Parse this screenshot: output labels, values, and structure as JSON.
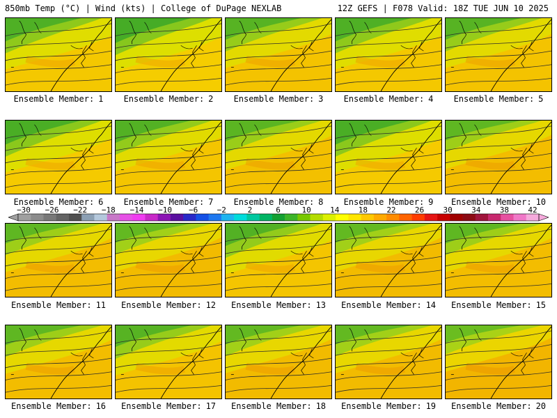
{
  "header": {
    "left": "850mb Temp (°C) | Wind (kts) | College of DuPage NEXLAB",
    "right": "12Z GEFS | F078 Valid: 18Z TUE JUN 10 2025"
  },
  "member_label": "Ensemble Member:",
  "members": [
    {
      "number": "1",
      "warmth": 0.25
    },
    {
      "number": "2",
      "warmth": 0.15
    },
    {
      "number": "3",
      "warmth": 0.35
    },
    {
      "number": "4",
      "warmth": 0.25
    },
    {
      "number": "5",
      "warmth": 0.35
    },
    {
      "number": "6",
      "warmth": 0.2
    },
    {
      "number": "7",
      "warmth": 0.3
    },
    {
      "number": "8",
      "warmth": 0.4
    },
    {
      "number": "9",
      "warmth": 0.2
    },
    {
      "number": "10",
      "warmth": 0.45
    },
    {
      "number": "11",
      "warmth": 0.45
    },
    {
      "number": "12",
      "warmth": 0.5
    },
    {
      "number": "13",
      "warmth": 0.3
    },
    {
      "number": "14",
      "warmth": 0.5
    },
    {
      "number": "15",
      "warmth": 0.45
    },
    {
      "number": "16",
      "warmth": 0.45
    },
    {
      "number": "17",
      "warmth": 0.35
    },
    {
      "number": "18",
      "warmth": 0.5
    },
    {
      "number": "19",
      "warmth": 0.5
    },
    {
      "number": "20",
      "warmth": 0.6
    }
  ],
  "colorbar": {
    "ticks": [
      "−30",
      "−26",
      "−22",
      "−18",
      "−14",
      "−10",
      "−6",
      "−2",
      "2",
      "6",
      "10",
      "14",
      "18",
      "22",
      "26",
      "30",
      "34",
      "38",
      "42"
    ],
    "colors": [
      "#a0a0a0",
      "#8c8c8c",
      "#787878",
      "#646464",
      "#505050",
      "#8ca0b4",
      "#b4c8dc",
      "#c878c8",
      "#e650e6",
      "#f03cf0",
      "#c828c8",
      "#8c14b4",
      "#5a0fa0",
      "#2828c8",
      "#1450e6",
      "#1e78f0",
      "#1eb4f0",
      "#00dcdc",
      "#00c8a0",
      "#00b464",
      "#14a032",
      "#3cb428",
      "#78c800",
      "#b4dc00",
      "#dcf000",
      "#ffff00",
      "#ffe600",
      "#ffc800",
      "#ffaa00",
      "#ff8c00",
      "#ff6400",
      "#ff3c00",
      "#e61414",
      "#c80000",
      "#a00000",
      "#8c0a14",
      "#a0143c",
      "#c8286e",
      "#e650a0",
      "#f078c8",
      "#f5aadc"
    ]
  }
}
